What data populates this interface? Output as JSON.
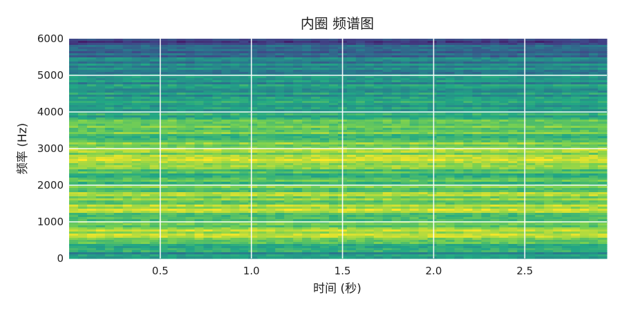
{
  "chart_data": {
    "type": "heatmap",
    "title": "内圈 频谱图",
    "xlabel": "时间 (秒)",
    "ylabel": "频率 (Hz)",
    "xlim": [
      0,
      2.95
    ],
    "ylim": [
      0,
      6000
    ],
    "xticks": [
      0.5,
      1.0,
      1.5,
      2.0,
      2.5
    ],
    "xtick_labels": [
      "0.5",
      "1.0",
      "1.5",
      "2.0",
      "2.5"
    ],
    "yticks": [
      0,
      1000,
      2000,
      3000,
      4000,
      5000,
      6000
    ],
    "ytick_labels": [
      "0",
      "1000",
      "2000",
      "3000",
      "4000",
      "5000",
      "6000"
    ],
    "grid": true,
    "colormap": "viridis",
    "intensity_profile": [
      {
        "freq": 0,
        "intensity": 0.45
      },
      {
        "freq": 300,
        "intensity": 0.62
      },
      {
        "freq": 650,
        "intensity": 0.88
      },
      {
        "freq": 1000,
        "intensity": 0.7
      },
      {
        "freq": 1300,
        "intensity": 0.85
      },
      {
        "freq": 1800,
        "intensity": 0.78
      },
      {
        "freq": 2300,
        "intensity": 0.7
      },
      {
        "freq": 2700,
        "intensity": 0.92
      },
      {
        "freq": 3100,
        "intensity": 0.78
      },
      {
        "freq": 3600,
        "intensity": 0.7
      },
      {
        "freq": 4200,
        "intensity": 0.58
      },
      {
        "freq": 4700,
        "intensity": 0.5
      },
      {
        "freq": 5200,
        "intensity": 0.48
      },
      {
        "freq": 5700,
        "intensity": 0.35
      },
      {
        "freq": 6000,
        "intensity": 0.18
      }
    ]
  }
}
